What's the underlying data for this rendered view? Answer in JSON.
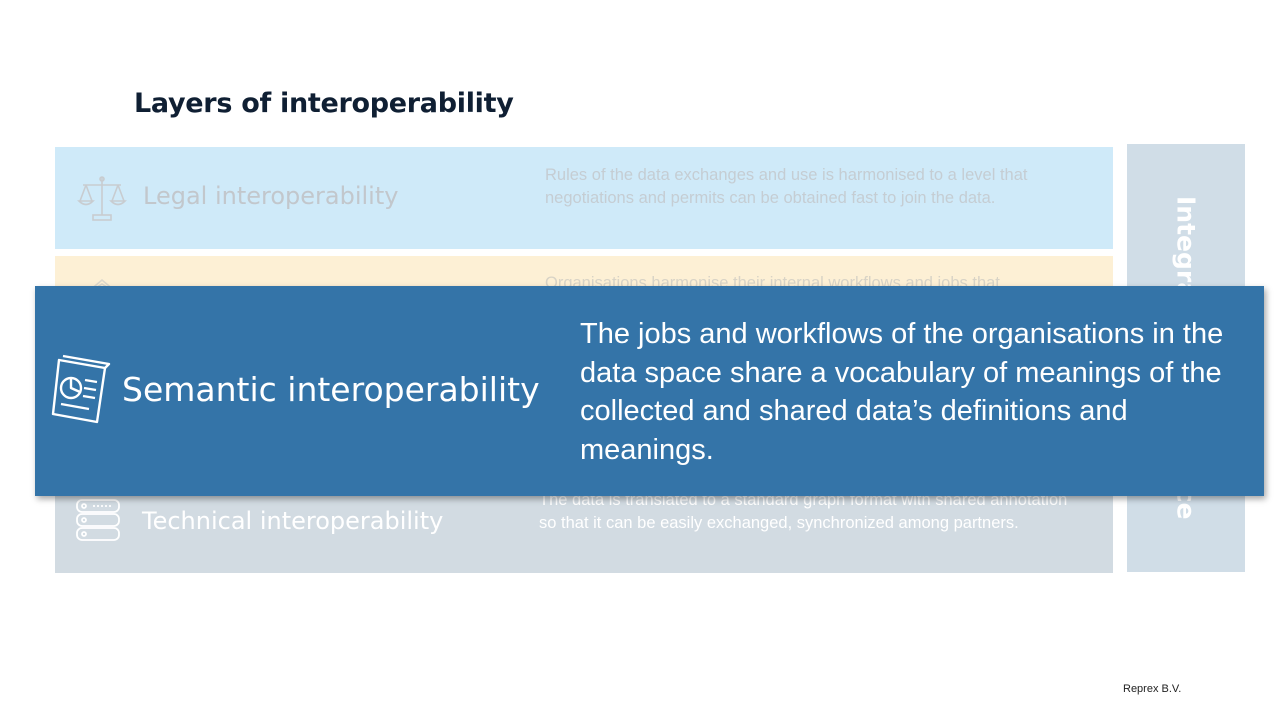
{
  "slide": {
    "title": "Layers of interoperability",
    "footer": "Reprex B.V."
  },
  "layers": {
    "legal": {
      "name": "Legal interoperability",
      "description": "Rules of the data exchanges and use is harmonised to a level that negotiations and permits can be obtained fast to join the data.",
      "icon": "scales-icon"
    },
    "organisational": {
      "description": "Organisations harmonise their internal workflows and jobs that",
      "icon": "building-icon"
    },
    "technical": {
      "name": "Technical interoperability",
      "description": "The data is translated to a standard graph format with shared annotation so that it can be easily exchanged, synchronized among partners.",
      "icon": "database-icon"
    }
  },
  "side_bar": {
    "label": "Integrated governance",
    "visible_top": "Integrate",
    "visible_bottom": "nce"
  },
  "highlight": {
    "name": "Semantic interoperability",
    "description": "The jobs and workflows of the organisations in the data space share a vocabulary of meanings of the collected and shared data’s definitions and meanings.",
    "icon": "document-chart-icon"
  },
  "colors": {
    "legal_bg": "#cfeaf9",
    "organisational_bg": "#fdf0d5",
    "technical_bg": "#d2dbe2",
    "highlight_bg": "#3474a8",
    "side_bar_bg": "#d0dde7",
    "title": "#0f1f33"
  }
}
